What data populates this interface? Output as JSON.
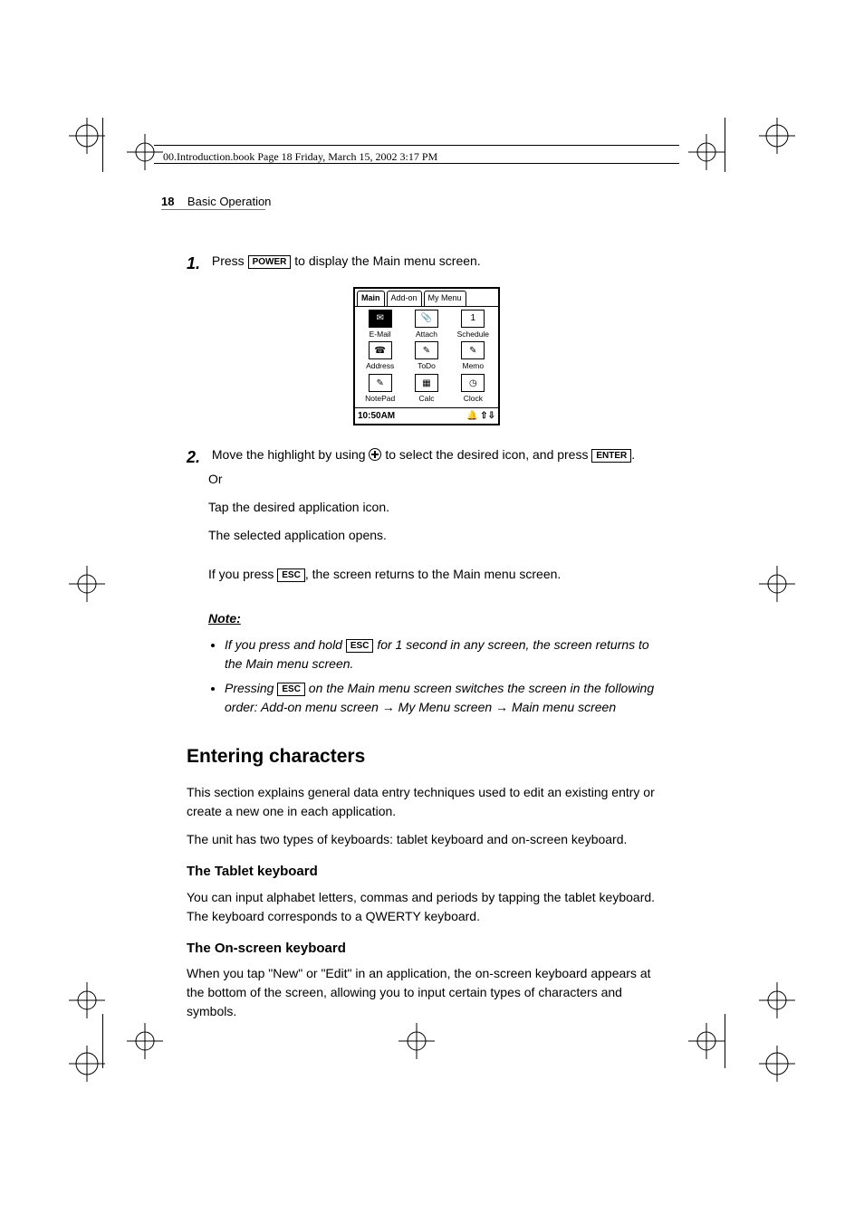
{
  "colors": {
    "text": "#000000",
    "background": "#ffffff",
    "rule_gray": "#777777"
  },
  "header": {
    "crop_info": "00.Introduction.book  Page 18  Friday, March 15, 2002  3:17 PM"
  },
  "running_head": {
    "page_number": "18",
    "section": "Basic Operation"
  },
  "step1": {
    "number": "1.",
    "text_before_key": "Press ",
    "key": "POWER",
    "text_after_key": " to display the Main menu screen."
  },
  "screenshot": {
    "tabs": [
      "Main",
      "Add-on",
      "My Menu"
    ],
    "active_tab_index": 0,
    "icons": [
      {
        "label": "E-Mail",
        "selected": true,
        "glyph": "✉"
      },
      {
        "label": "Attach",
        "selected": false,
        "glyph": "📎"
      },
      {
        "label": "Schedule",
        "selected": false,
        "glyph": "1"
      },
      {
        "label": "Address",
        "selected": false,
        "glyph": "☎"
      },
      {
        "label": "ToDo",
        "selected": false,
        "glyph": "✎"
      },
      {
        "label": "Memo",
        "selected": false,
        "glyph": "✎"
      },
      {
        "label": "NotePad",
        "selected": false,
        "glyph": "✎"
      },
      {
        "label": "Calc",
        "selected": false,
        "glyph": "▦"
      },
      {
        "label": "Clock",
        "selected": false,
        "glyph": "◷"
      }
    ],
    "status_time": "10:50AM",
    "status_icons": "🔔   ⇧⇩"
  },
  "step2": {
    "number": "2.",
    "line1_a": "Move the highlight by using ",
    "line1_b": " to select the desired icon, and press ",
    "key": "ENTER",
    "line1_c": ".",
    "line2": "Or",
    "line3": "Tap the desired application icon.",
    "line4": "The selected application opens.",
    "line5_a": "If you press ",
    "esc": "ESC",
    "line5_b": ", the screen returns to the Main menu screen."
  },
  "note": {
    "heading": "Note:",
    "items": [
      {
        "a": "If you press and hold ",
        "key": "ESC",
        "b": " for 1 second in any screen, the screen returns to the Main menu screen."
      },
      {
        "a": "Pressing ",
        "key": "ESC",
        "b": " on the Main menu screen switches the screen in the following order: Add-on menu screen → My Menu screen → Main menu screen"
      }
    ]
  },
  "section": {
    "title": "Entering characters",
    "intro1": "This section explains general data entry techniques used to edit an existing entry or create a new one in each application.",
    "intro2": "The unit has two types of keyboards: tablet keyboard and on-screen keyboard.",
    "sub1": "The Tablet keyboard",
    "sub1_body": "You can input alphabet letters, commas and periods by tapping the tablet keyboard. The keyboard corresponds to a QWERTY keyboard.",
    "sub2": "The On-screen keyboard",
    "sub2_body": "When you tap \"New\" or \"Edit\" in an application, the on-screen keyboard appears at the bottom of the screen, allowing you to input certain types of characters and symbols."
  }
}
